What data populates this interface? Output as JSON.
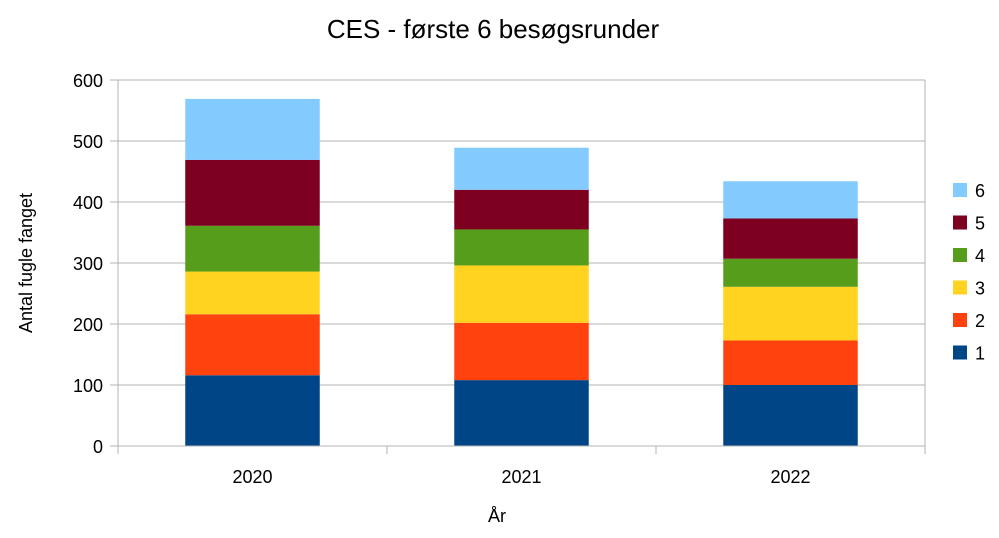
{
  "chart_data": {
    "type": "bar",
    "stacked": true,
    "title": "CES - første 6 besøgsrunder",
    "xlabel": "År",
    "ylabel": "Antal fugle fanget",
    "categories": [
      "2020",
      "2021",
      "2022"
    ],
    "ylim": [
      0,
      600
    ],
    "yticks": [
      0,
      100,
      200,
      300,
      400,
      500,
      600
    ],
    "grid": true,
    "legend_position": "right",
    "series": [
      {
        "name": "1",
        "color": "#004586",
        "values": [
          116,
          108,
          100
        ]
      },
      {
        "name": "2",
        "color": "#ff420e",
        "values": [
          100,
          94,
          73
        ]
      },
      {
        "name": "3",
        "color": "#ffd320",
        "values": [
          70,
          94,
          88
        ]
      },
      {
        "name": "4",
        "color": "#579d1c",
        "values": [
          75,
          59,
          46
        ]
      },
      {
        "name": "5",
        "color": "#7e0021",
        "values": [
          108,
          65,
          66
        ]
      },
      {
        "name": "6",
        "color": "#83caff",
        "values": [
          100,
          69,
          61
        ]
      }
    ]
  }
}
